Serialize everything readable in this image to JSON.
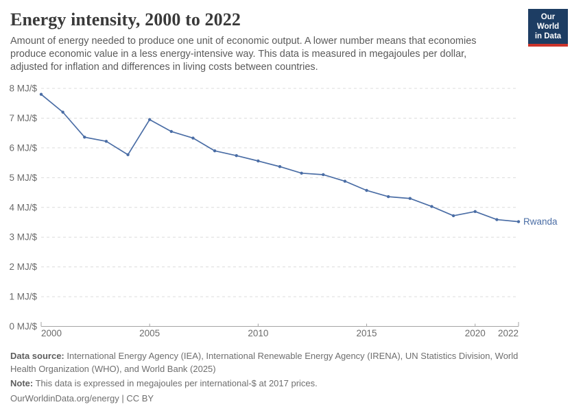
{
  "header": {
    "title": "Energy intensity, 2000 to 2022",
    "subtitle": "Amount of energy needed to produce one unit of economic output. A lower number means that economies produce economic value in a less energy-intensive way. This data is measured in megajoules per dollar, adjusted for inflation and differences in living costs between countries.",
    "logo": {
      "line1": "Our World",
      "line2": "in Data",
      "navy": "#1d3d63",
      "red": "#cc342b"
    }
  },
  "chart_data": {
    "type": "line",
    "title": "Energy intensity, 2000 to 2022",
    "unit_suffix": " MJ/$",
    "x": [
      2000,
      2001,
      2002,
      2003,
      2004,
      2005,
      2006,
      2007,
      2008,
      2009,
      2010,
      2011,
      2012,
      2013,
      2014,
      2015,
      2016,
      2017,
      2018,
      2019,
      2020,
      2021,
      2022
    ],
    "series": [
      {
        "name": "Rwanda",
        "color": "#4a6da5",
        "values": [
          7.8,
          7.2,
          6.36,
          6.22,
          5.77,
          6.95,
          6.55,
          6.33,
          5.9,
          5.74,
          5.56,
          5.37,
          5.15,
          5.1,
          4.88,
          4.57,
          4.36,
          4.3,
          4.03,
          3.72,
          3.86,
          3.59,
          3.52
        ]
      }
    ],
    "ylim": [
      0,
      8
    ],
    "y_ticks": [
      0,
      1,
      2,
      3,
      4,
      5,
      6,
      7,
      8
    ],
    "x_ticks": [
      2000,
      2005,
      2010,
      2015,
      2020,
      2022
    ],
    "grid": "horizontal-dashed",
    "legend_position": "end-of-line-label",
    "axis_color": "#a3a3a3",
    "grid_color": "#dcdcdc",
    "tick_label_color": "#6b6b6b"
  },
  "footer": {
    "data_source_label": "Data source:",
    "data_source_text": " International Energy Agency (IEA), International Renewable Energy Agency (IRENA), UN Statistics Division, World Health Organization (WHO), and World Bank (2025)",
    "note_label": "Note:",
    "note_text": " This data is expressed in megajoules per international-$ at 2017 prices.",
    "link_text": "OurWorldinData.org/energy | CC BY"
  }
}
